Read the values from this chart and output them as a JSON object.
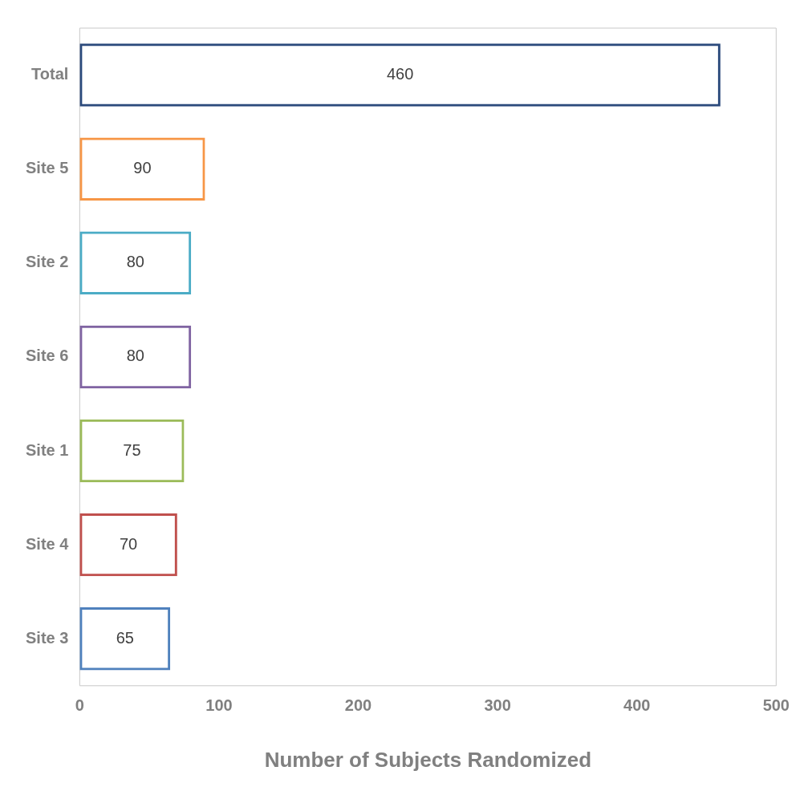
{
  "chart_data": {
    "type": "bar",
    "orientation": "horizontal",
    "xlabel": "Number of Subjects Randomized",
    "categories": [
      "Total",
      "Site 5",
      "Site 2",
      "Site 6",
      "Site 1",
      "Site 4",
      "Site 3"
    ],
    "values": [
      460,
      90,
      80,
      80,
      75,
      70,
      65
    ],
    "colors": [
      "#2b4a7c",
      "#f79646",
      "#4bacc6",
      "#8064a2",
      "#9bbb59",
      "#c0504d",
      "#4f81bd"
    ],
    "xlim": [
      0,
      500
    ],
    "xticks": [
      0,
      100,
      200,
      300,
      400,
      500
    ],
    "data_labels": true
  }
}
